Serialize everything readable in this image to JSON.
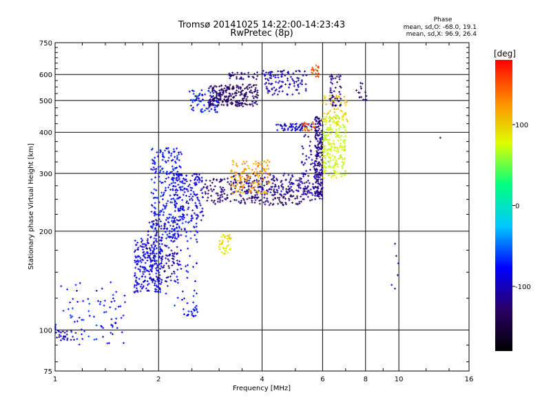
{
  "chart_data": {
    "type": "scatter",
    "title": "Tromsø 20141025 14:22:00-14:23:43",
    "subtitle": "RwPretec (8p)",
    "xlabel": "Frequency [MHz]",
    "ylabel": "Stationary phase Virtual Height [km]",
    "x_scale": "log",
    "y_scale": "log",
    "xlim": [
      1,
      16
    ],
    "ylim": [
      75,
      750
    ],
    "x_ticks": [
      1,
      2,
      4,
      6,
      8,
      10,
      16
    ],
    "x_tick_labels": [
      "1",
      "2",
      "4",
      "6",
      "8",
      "10",
      "16"
    ],
    "y_ticks": [
      75,
      100,
      200,
      300,
      400,
      500,
      600,
      750
    ],
    "y_tick_labels": [
      "75",
      "100",
      "200",
      "300",
      "400",
      "500",
      "600",
      "750"
    ],
    "grid": true,
    "stats_title": "Phase",
    "stats": [
      "mean, sd,O: -68.0, 19.1",
      "mean, sd,X:  96.9, 26.4"
    ],
    "colorbar": {
      "label": "[deg]",
      "range": [
        -180,
        180
      ],
      "ticks": [
        100,
        0,
        -100
      ],
      "tick_labels": [
        "100",
        "0",
        "-100"
      ],
      "colormap": [
        "#000000",
        "#2a0066",
        "#0000ff",
        "#00c8ff",
        "#00ff80",
        "#dfff00",
        "#ff8c00",
        "#ff0000"
      ]
    },
    "series": [
      {
        "clusters": [
          {
            "x": [
              1.0,
              1.6
            ],
            "y": [
              90,
              140
            ],
            "phase": -75,
            "n": 80
          },
          {
            "x": 1.5,
            "y": 105,
            "phase": -100,
            "n": 25
          },
          {
            "x": [
              1.7,
              2.05
            ],
            "y": [
              130,
              190
            ],
            "phase": -85,
            "n": 220
          },
          {
            "x": [
              1.85,
              2.3
            ],
            "y": [
              140,
              220
            ],
            "phase": -110,
            "n": 120
          },
          {
            "x": [
              1.9,
              2.35
            ],
            "y": [
              190,
              360
            ],
            "phase": -75,
            "n": 250
          },
          {
            "x": [
              2.2,
              2.7
            ],
            "y": [
              215,
              300
            ],
            "phase": -90,
            "n": 150
          },
          {
            "x": [
              2.1,
              2.6
            ],
            "y": [
              110,
              220
            ],
            "phase": -78,
            "n": 80
          },
          {
            "x": [
              2.7,
              5.6
            ],
            "y": [
              240,
              290
            ],
            "phase": -125,
            "n": 260
          },
          {
            "x": [
              3.2,
              5.9
            ],
            "y": [
              258,
              300
            ],
            "phase": -105,
            "n": 120
          },
          {
            "x": [
              3.25,
              4.2
            ],
            "y": [
              260,
              330
            ],
            "phase": 120,
            "n": 140
          },
          {
            "x": [
              5.7,
              6.0
            ],
            "y": [
              250,
              450
            ],
            "phase": -120,
            "n": 180
          },
          {
            "x": [
              5.2,
              5.9
            ],
            "y": [
              255,
              400
            ],
            "phase": -110,
            "n": 60
          },
          {
            "x": [
              6.0,
              7.0
            ],
            "y": [
              290,
              450
            ],
            "phase": 75,
            "n": 220
          },
          {
            "x": [
              6.0,
              7.1
            ],
            "y": [
              420,
              520
            ],
            "phase": 100,
            "n": 60
          },
          {
            "x": [
              6.3,
              6.8
            ],
            "y": [
              480,
              600
            ],
            "phase": -118,
            "n": 50
          },
          {
            "x": [
              2.45,
              3.0
            ],
            "y": [
              460,
              540
            ],
            "phase": -72,
            "n": 80
          },
          {
            "x": [
              2.8,
              3.9
            ],
            "y": [
              480,
              560
            ],
            "phase": -130,
            "n": 230
          },
          {
            "x": [
              3.2,
              3.9
            ],
            "y": [
              580,
              610
            ],
            "phase": -120,
            "n": 30
          },
          {
            "x": [
              4.0,
              5.4
            ],
            "y": [
              520,
              620
            ],
            "phase": -105,
            "n": 110
          },
          {
            "x": [
              4.4,
              5.6
            ],
            "y": [
              405,
              425
            ],
            "phase": -95,
            "n": 60
          },
          {
            "x": [
              5.2,
              5.7
            ],
            "y": [
              400,
              430
            ],
            "phase": 150,
            "n": 20
          },
          {
            "x": [
              5.55,
              5.85
            ],
            "y": [
              590,
              640
            ],
            "phase": 150,
            "n": 20
          },
          {
            "x": [
              3.0,
              3.25
            ],
            "y": [
              170,
              195
            ],
            "phase": 90,
            "n": 40
          },
          {
            "x": [
              1.0,
              1.15
            ],
            "y": [
              93,
              100
            ],
            "phase": -100,
            "n": 25
          },
          {
            "x": [
              2.4,
              2.6
            ],
            "y": [
              110,
              116
            ],
            "phase": -75,
            "n": 15
          },
          {
            "x": [
              7.5,
              8.05
            ],
            "y": [
              500,
              580
            ],
            "phase": -130,
            "n": 15
          },
          {
            "x": [
              9.3,
              10.0
            ],
            "y": [
              100,
              190
            ],
            "phase": -110,
            "n": 6
          },
          {
            "x": 13.2,
            "y": 385,
            "phase": -125,
            "n": 1
          }
        ]
      }
    ]
  }
}
